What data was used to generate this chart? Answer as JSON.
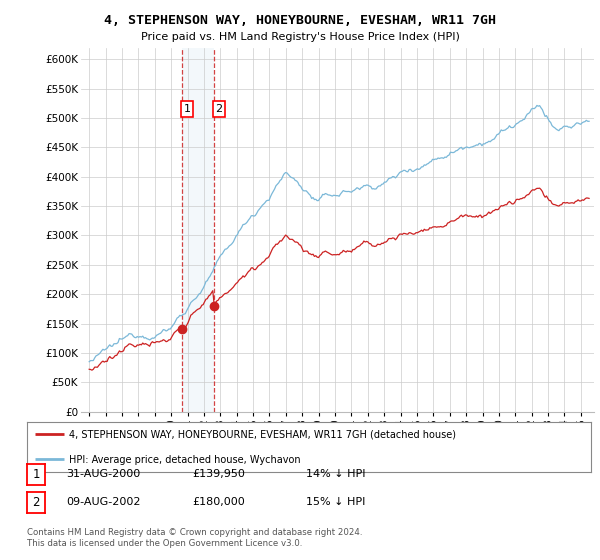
{
  "title": "4, STEPHENSON WAY, HONEYBOURNE, EVESHAM, WR11 7GH",
  "subtitle": "Price paid vs. HM Land Registry's House Price Index (HPI)",
  "ylim": [
    0,
    620000
  ],
  "sale1_date": 2000.667,
  "sale1_price": 139950,
  "sale1_label": "1",
  "sale2_date": 2002.608,
  "sale2_price": 180000,
  "sale2_label": "2",
  "hpi_color": "#7bb8d8",
  "sale_color": "#cc2222",
  "shade_color": "#daeaf5",
  "legend_line1": "4, STEPHENSON WAY, HONEYBOURNE, EVESHAM, WR11 7GH (detached house)",
  "legend_line2": "HPI: Average price, detached house, Wychavon",
  "table_row1": [
    "1",
    "31-AUG-2000",
    "£139,950",
    "14% ↓ HPI"
  ],
  "table_row2": [
    "2",
    "09-AUG-2002",
    "£180,000",
    "15% ↓ HPI"
  ],
  "footer": "Contains HM Land Registry data © Crown copyright and database right 2024.\nThis data is licensed under the Open Government Licence v3.0.",
  "background_color": "#ffffff"
}
